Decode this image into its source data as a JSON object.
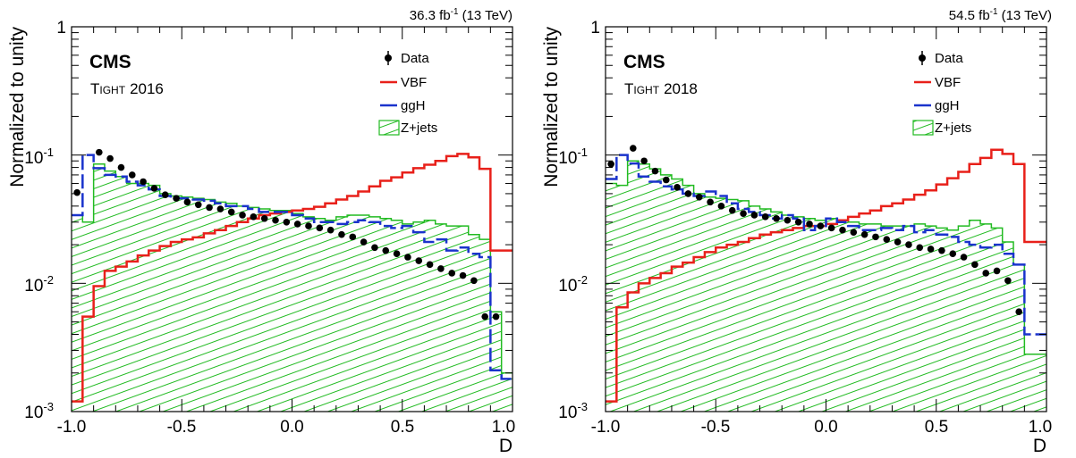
{
  "chart_data": [
    {
      "type": "line",
      "panel": "left",
      "lumi_label": "36.3 fb",
      "lumi_sup": "-1",
      "energy_label": "(13 TeV)",
      "experiment": "CMS",
      "category_cap": "T",
      "category_small": "IGHT",
      "category_year": "2016",
      "xlabel": "D",
      "ylabel": "Normalized to unity",
      "xlim": [
        -1.0,
        1.0
      ],
      "ylim": [
        0.001,
        1
      ],
      "y_scale": "log",
      "x_ticks": [
        "-1.0",
        "-0.5",
        "0.0",
        "0.5",
        "1.0"
      ],
      "y_ticks": [
        {
          "base": "1",
          "exp": ""
        },
        {
          "base": "10",
          "exp": "-1"
        },
        {
          "base": "10",
          "exp": "-2"
        },
        {
          "base": "10",
          "exp": "-3"
        }
      ],
      "legend_position": "top-right",
      "bin_edges": [
        -1.0,
        -0.95,
        -0.9,
        -0.85,
        -0.8,
        -0.75,
        -0.7,
        -0.65,
        -0.6,
        -0.55,
        -0.5,
        -0.45,
        -0.4,
        -0.35,
        -0.3,
        -0.25,
        -0.2,
        -0.15,
        -0.1,
        -0.05,
        0.0,
        0.05,
        0.1,
        0.15,
        0.2,
        0.25,
        0.3,
        0.35,
        0.4,
        0.45,
        0.5,
        0.55,
        0.6,
        0.65,
        0.7,
        0.75,
        0.8,
        0.85,
        0.9,
        0.95,
        1.0
      ],
      "series": [
        {
          "name": "Z+jets",
          "kind": "hatched-hist",
          "color": "#22bb22",
          "values": [
            0.034,
            0.03,
            0.085,
            0.075,
            0.068,
            0.06,
            0.06,
            0.058,
            0.05,
            0.048,
            0.047,
            0.046,
            0.045,
            0.043,
            0.042,
            0.04,
            0.039,
            0.038,
            0.037,
            0.037,
            0.035,
            0.033,
            0.032,
            0.031,
            0.033,
            0.034,
            0.034,
            0.033,
            0.032,
            0.031,
            0.029,
            0.03,
            0.031,
            0.029,
            0.028,
            0.028,
            0.024,
            0.022,
            0.006,
            0.002
          ]
        },
        {
          "name": "VBF",
          "kind": "hist",
          "color": "#e8201a",
          "values": [
            0.0012,
            0.0055,
            0.0095,
            0.0125,
            0.0135,
            0.0148,
            0.0165,
            0.018,
            0.0195,
            0.021,
            0.022,
            0.0228,
            0.0245,
            0.026,
            0.028,
            0.03,
            0.032,
            0.034,
            0.035,
            0.036,
            0.037,
            0.038,
            0.0395,
            0.042,
            0.045,
            0.048,
            0.052,
            0.057,
            0.063,
            0.067,
            0.073,
            0.079,
            0.084,
            0.09,
            0.098,
            0.102,
            0.096,
            0.078,
            0.018,
            0.018
          ]
        },
        {
          "name": "ggH",
          "kind": "dashed-hist",
          "color": "#1a33cc",
          "values": [
            0.034,
            0.1,
            0.079,
            0.07,
            0.068,
            0.062,
            0.058,
            0.054,
            0.048,
            0.046,
            0.046,
            0.045,
            0.044,
            0.042,
            0.04,
            0.04,
            0.038,
            0.036,
            0.036,
            0.036,
            0.034,
            0.032,
            0.03,
            0.03,
            0.029,
            0.03,
            0.031,
            0.03,
            0.028,
            0.027,
            0.028,
            0.025,
            0.021,
            0.022,
            0.018,
            0.019,
            0.017,
            0.016,
            0.0021,
            0.0018
          ]
        },
        {
          "name": "Data",
          "kind": "points",
          "color": "#000000",
          "x": [
            -0.975,
            -0.875,
            -0.825,
            -0.775,
            -0.725,
            -0.675,
            -0.625,
            -0.575,
            -0.525,
            -0.475,
            -0.425,
            -0.375,
            -0.325,
            -0.275,
            -0.225,
            -0.175,
            -0.125,
            -0.075,
            -0.025,
            0.025,
            0.075,
            0.125,
            0.175,
            0.225,
            0.275,
            0.325,
            0.375,
            0.425,
            0.475,
            0.525,
            0.575,
            0.625,
            0.675,
            0.725,
            0.775,
            0.825,
            0.875,
            0.925
          ],
          "values": [
            0.051,
            0.105,
            0.094,
            0.08,
            0.07,
            0.062,
            0.055,
            0.049,
            0.046,
            0.043,
            0.041,
            0.039,
            0.038,
            0.036,
            0.034,
            0.033,
            0.032,
            0.031,
            0.03,
            0.029,
            0.028,
            0.027,
            0.026,
            0.024,
            0.023,
            0.021,
            0.019,
            0.018,
            0.017,
            0.016,
            0.015,
            0.014,
            0.013,
            0.012,
            0.0115,
            0.0105,
            0.0055,
            0.0055
          ]
        }
      ]
    },
    {
      "type": "line",
      "panel": "right",
      "lumi_label": "54.5 fb",
      "lumi_sup": "-1",
      "energy_label": "(13 TeV)",
      "experiment": "CMS",
      "category_cap": "T",
      "category_small": "IGHT",
      "category_year": "2018",
      "xlabel": "D",
      "ylabel": "Normalized to unity",
      "xlim": [
        -1.0,
        1.0
      ],
      "ylim": [
        0.001,
        1
      ],
      "y_scale": "log",
      "x_ticks": [
        "-1.0",
        "-0.5",
        "0.0",
        "0.5",
        "1.0"
      ],
      "y_ticks": [
        {
          "base": "1",
          "exp": ""
        },
        {
          "base": "10",
          "exp": "-1"
        },
        {
          "base": "10",
          "exp": "-2"
        },
        {
          "base": "10",
          "exp": "-3"
        }
      ],
      "legend_position": "top-right",
      "bin_edges": [
        -1.0,
        -0.95,
        -0.9,
        -0.85,
        -0.8,
        -0.75,
        -0.7,
        -0.65,
        -0.6,
        -0.55,
        -0.5,
        -0.45,
        -0.4,
        -0.35,
        -0.3,
        -0.25,
        -0.2,
        -0.15,
        -0.1,
        -0.05,
        0.0,
        0.05,
        0.1,
        0.15,
        0.2,
        0.25,
        0.3,
        0.35,
        0.4,
        0.45,
        0.5,
        0.55,
        0.6,
        0.65,
        0.7,
        0.75,
        0.8,
        0.85,
        0.9,
        0.95,
        1.0
      ],
      "series": [
        {
          "name": "Z+jets",
          "kind": "hatched-hist",
          "color": "#22bb22",
          "values": [
            0.06,
            0.058,
            0.09,
            0.085,
            0.078,
            0.07,
            0.065,
            0.058,
            0.05,
            0.047,
            0.046,
            0.045,
            0.044,
            0.04,
            0.038,
            0.036,
            0.034,
            0.033,
            0.032,
            0.031,
            0.032,
            0.031,
            0.03,
            0.029,
            0.029,
            0.028,
            0.028,
            0.028,
            0.029,
            0.028,
            0.027,
            0.026,
            0.028,
            0.031,
            0.029,
            0.027,
            0.021,
            0.014,
            0.0028,
            0.0028
          ]
        },
        {
          "name": "VBF",
          "kind": "hist",
          "color": "#e8201a",
          "values": [
            0.0012,
            0.0065,
            0.0085,
            0.01,
            0.011,
            0.012,
            0.0135,
            0.0145,
            0.016,
            0.0175,
            0.019,
            0.02,
            0.021,
            0.0225,
            0.024,
            0.025,
            0.026,
            0.027,
            0.028,
            0.028,
            0.029,
            0.031,
            0.033,
            0.035,
            0.037,
            0.04,
            0.042,
            0.045,
            0.049,
            0.053,
            0.059,
            0.066,
            0.074,
            0.085,
            0.095,
            0.11,
            0.102,
            0.085,
            0.021,
            0.021
          ]
        },
        {
          "name": "ggH",
          "kind": "dashed-hist",
          "color": "#1a33cc",
          "values": [
            0.065,
            0.1,
            0.086,
            0.068,
            0.062,
            0.057,
            0.054,
            0.05,
            0.048,
            0.052,
            0.048,
            0.042,
            0.038,
            0.036,
            0.034,
            0.032,
            0.034,
            0.032,
            0.026,
            0.028,
            0.032,
            0.03,
            0.028,
            0.026,
            0.026,
            0.027,
            0.026,
            0.028,
            0.025,
            0.026,
            0.024,
            0.023,
            0.021,
            0.02,
            0.019,
            0.02,
            0.017,
            0.014,
            0.004,
            0.004
          ]
        },
        {
          "name": "Data",
          "kind": "points",
          "color": "#000000",
          "x": [
            -0.975,
            -0.875,
            -0.825,
            -0.775,
            -0.725,
            -0.675,
            -0.625,
            -0.575,
            -0.525,
            -0.475,
            -0.425,
            -0.375,
            -0.325,
            -0.275,
            -0.225,
            -0.175,
            -0.125,
            -0.075,
            -0.025,
            0.025,
            0.075,
            0.125,
            0.175,
            0.225,
            0.275,
            0.325,
            0.375,
            0.425,
            0.475,
            0.525,
            0.575,
            0.625,
            0.675,
            0.725,
            0.775,
            0.825,
            0.875
          ],
          "values": [
            0.085,
            0.113,
            0.09,
            0.075,
            0.064,
            0.056,
            0.05,
            0.047,
            0.043,
            0.04,
            0.037,
            0.035,
            0.034,
            0.033,
            0.032,
            0.031,
            0.03,
            0.029,
            0.028,
            0.027,
            0.026,
            0.025,
            0.024,
            0.023,
            0.022,
            0.021,
            0.02,
            0.019,
            0.0185,
            0.018,
            0.017,
            0.016,
            0.014,
            0.012,
            0.0125,
            0.0105,
            0.006
          ]
        }
      ]
    }
  ]
}
